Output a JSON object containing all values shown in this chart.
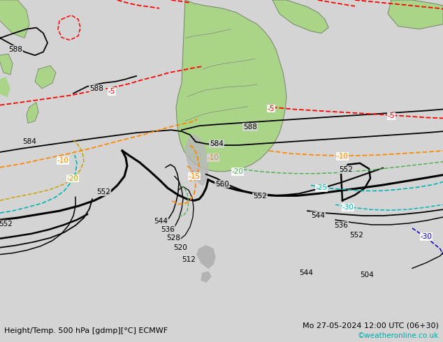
{
  "title_left": "Height/Temp. 500 hPa [gdmp][°C] ECMWF",
  "title_right": "Mo 27-05-2024 12:00 UTC (06+30)",
  "watermark": "©weatheronline.co.uk",
  "bg_color": "#d4d4d4",
  "land_color": "#aad488",
  "coast_color": "#777777",
  "black_color": "#000000",
  "red_color": "#ff0000",
  "orange_color": "#ff8800",
  "yellow_color": "#c8a000",
  "green_color": "#50b050",
  "cyan_color": "#00b4b4",
  "blue_color": "#0000cc",
  "figsize": [
    6.34,
    4.9
  ],
  "dpi": 100
}
